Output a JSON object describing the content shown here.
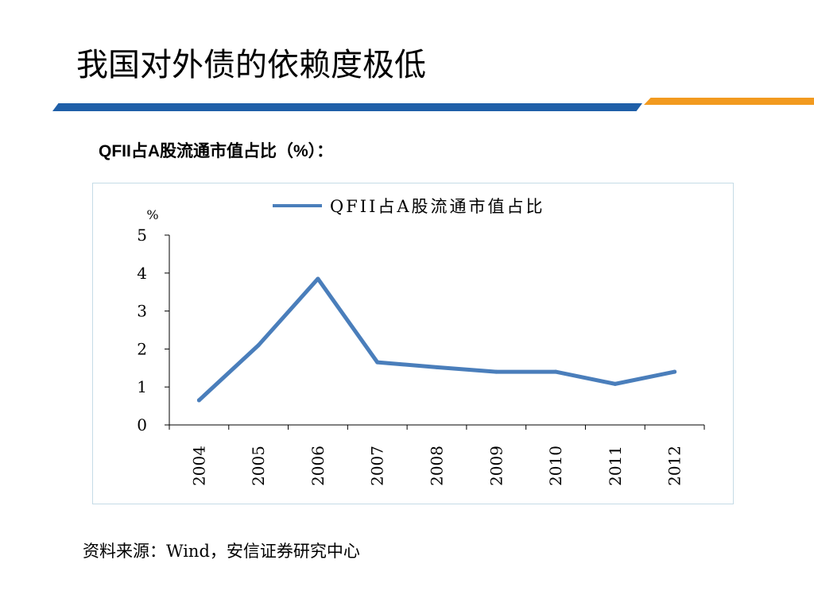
{
  "slide": {
    "title": "我国对外债的依赖度极低",
    "subtitle": "QFII占A股流通市值占比（%）：",
    "source": "资料来源：Wind，安信证券研究中心"
  },
  "colors": {
    "title_bar_blue": "#1f5fa8",
    "title_bar_orange": "#f29a1f",
    "series_line": "#4a7ebb",
    "chart_border": "#c5dbe6"
  },
  "chart_data": {
    "type": "line",
    "title": "",
    "ylabel": "%",
    "xlabel": "",
    "categories": [
      "2004",
      "2005",
      "2006",
      "2007",
      "2008",
      "2009",
      "2010",
      "2011",
      "2012"
    ],
    "series": [
      {
        "name": "QFII占A股流通市值占比",
        "values": [
          0.65,
          2.1,
          3.85,
          1.65,
          1.52,
          1.4,
          1.4,
          1.08,
          1.4
        ]
      }
    ],
    "ylim": [
      0,
      5
    ],
    "yticks": [
      "0",
      "1",
      "2",
      "3",
      "4",
      "5"
    ],
    "grid": false,
    "legend_position": "top"
  }
}
